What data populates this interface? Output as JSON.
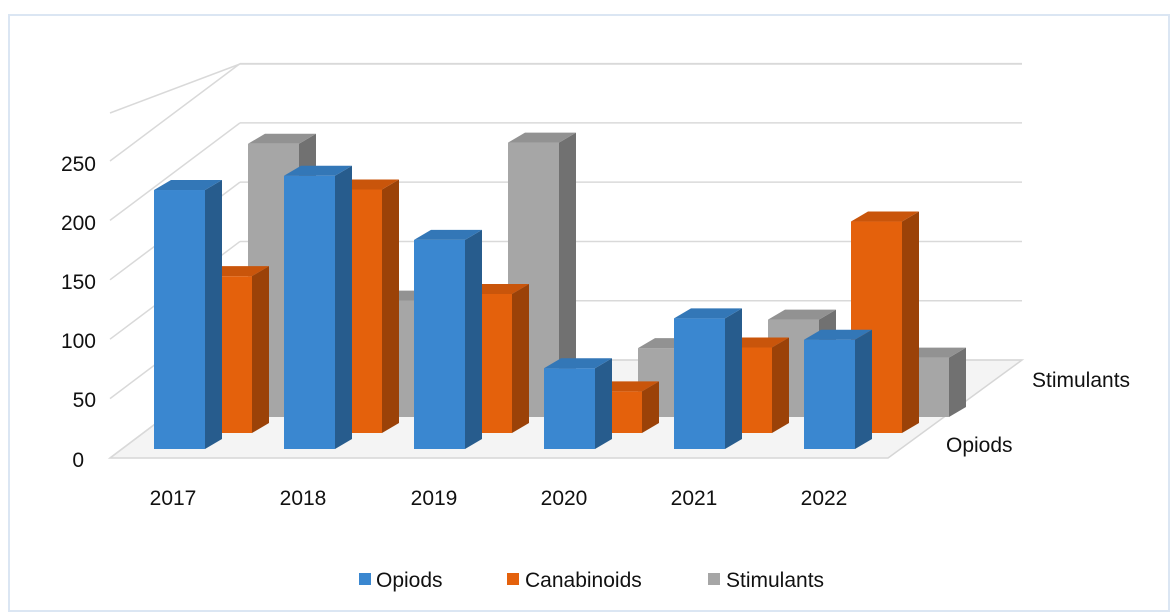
{
  "chart_data": {
    "type": "bar",
    "subtype": "3d-bar-with-depth-rows",
    "title": "",
    "xlabel": "",
    "ylabel": "",
    "categories": [
      "2017",
      "2018",
      "2019",
      "2020",
      "2021",
      "2022"
    ],
    "ylim": [
      0,
      250
    ],
    "yticks": [
      "0",
      "50",
      "100",
      "150",
      "200",
      "250"
    ],
    "depth_labels": [
      "Opiods",
      "Stimulants"
    ],
    "series": [
      {
        "name": "Opiods",
        "values": [
          218,
          230,
          176,
          68,
          110,
          92
        ],
        "color": "#3a87d0"
      },
      {
        "name": "Canabinoids",
        "values": [
          132,
          205,
          117,
          35,
          72,
          178
        ],
        "color": "#e4610c"
      },
      {
        "name": "Stimulants",
        "values": [
          230,
          98,
          231,
          58,
          82,
          50
        ],
        "color": "#a6a6a6"
      }
    ],
    "grid": true,
    "legend_position": "bottom"
  }
}
